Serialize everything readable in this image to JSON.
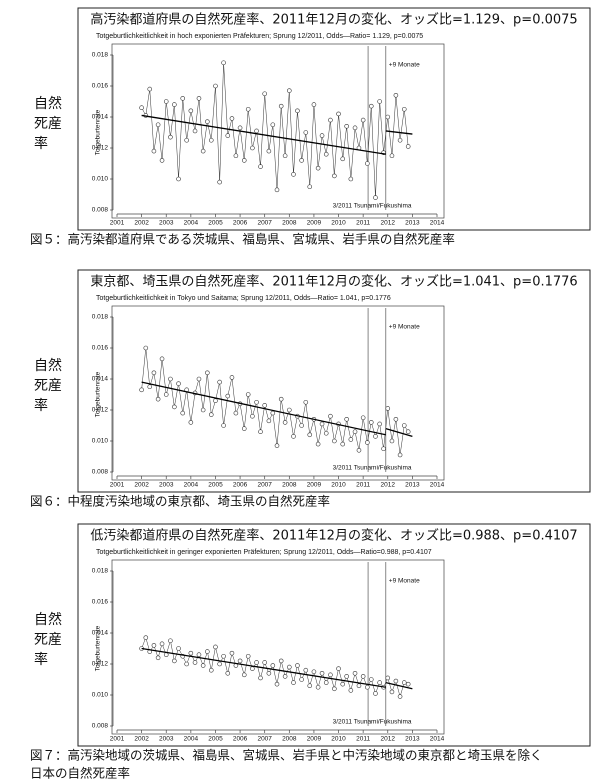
{
  "chart_data": [
    {
      "type": "line",
      "heading": "高汚染都道府県の自然死産率、2011年12月の変化、オッズ比=1.129、p=0.0075",
      "title": "Totgeburtlichkeitlichkeit in hoch exponierten Präfekturen; Sprung 12/2011, Odds—Ratio= 1.129, p=0.0075",
      "ylabel": "Totgeburtenrate",
      "side_label": [
        "自然",
        "死産",
        "率"
      ],
      "caption": [
        "図５：高汚染都道府県である茨城県、福島県、宮城県、岩手県の自然死産率"
      ],
      "xlim": [
        2001,
        2014
      ],
      "xticks": [
        2001,
        2002,
        2003,
        2004,
        2005,
        2006,
        2007,
        2008,
        2009,
        2010,
        2011,
        2012,
        2013,
        2014
      ],
      "ylim": [
        0.008,
        0.018
      ],
      "yticks": [
        0.008,
        {
          "value": 0.01,
          "label": "0.010"
        },
        0.012,
        0.014,
        0.016,
        0.018
      ],
      "series": [
        {
          "color": "#333333",
          "x": [
            2002,
            2002.17,
            2002.33,
            2002.5,
            2002.67,
            2002.83,
            2003,
            2003.17,
            2003.33,
            2003.5,
            2003.67,
            2003.83,
            2004,
            2004.17,
            2004.33,
            2004.5,
            2004.67,
            2004.83,
            2005,
            2005.17,
            2005.33,
            2005.5,
            2005.67,
            2005.83,
            2006,
            2006.17,
            2006.33,
            2006.5,
            2006.67,
            2006.83,
            2007,
            2007.17,
            2007.33,
            2007.5,
            2007.67,
            2007.83,
            2008,
            2008.17,
            2008.33,
            2008.5,
            2008.67,
            2008.83,
            2009,
            2009.17,
            2009.33,
            2009.5,
            2009.67,
            2009.83,
            2010,
            2010.17,
            2010.33,
            2010.5,
            2010.67,
            2010.83,
            2011,
            2011.17,
            2011.33,
            2011.5,
            2011.67,
            2011.83,
            2012,
            2012.17,
            2012.33,
            2012.5,
            2012.67,
            2012.83
          ],
          "values": [
            0.0146,
            0.0141,
            0.0158,
            0.0118,
            0.0135,
            0.0112,
            0.015,
            0.0127,
            0.0148,
            0.01,
            0.0152,
            0.0125,
            0.0144,
            0.0131,
            0.0152,
            0.0118,
            0.0137,
            0.0125,
            0.016,
            0.0098,
            0.0175,
            0.0128,
            0.0139,
            0.0115,
            0.0133,
            0.0112,
            0.0145,
            0.012,
            0.0131,
            0.0108,
            0.0155,
            0.0118,
            0.0135,
            0.0093,
            0.0147,
            0.0115,
            0.0157,
            0.0103,
            0.0144,
            0.0112,
            0.013,
            0.0095,
            0.0148,
            0.0107,
            0.0128,
            0.0116,
            0.0138,
            0.0102,
            0.0142,
            0.0113,
            0.0134,
            0.01,
            0.0133,
            0.012,
            0.0138,
            0.011,
            0.0147,
            0.0088,
            0.015,
            0.0117,
            0.014,
            0.0115,
            0.0154,
            0.0125,
            0.0145,
            0.0121
          ]
        }
      ],
      "trend": [
        {
          "x": [
            2002,
            2011.92
          ],
          "y": [
            0.0141,
            0.0116
          ]
        },
        {
          "x": [
            2011.92,
            2013
          ],
          "y": [
            0.0131,
            0.0129
          ]
        }
      ],
      "events": [
        {
          "x": 2011.2,
          "label": "3/2011 Tsunami/Fukushima"
        },
        {
          "x": 2011.92,
          "label": "+9 Monate"
        }
      ]
    },
    {
      "type": "line",
      "heading": "東京都、埼玉県の自然死産率、2011年12月の変化、オッズ比=1.041、p=0.1776",
      "title": "Totgeburtlichkeitlichkeit in Tokyo und Saitama; Sprung 12/2011, Odds—Ratio= 1.041, p=0.1776",
      "ylabel": "Totgeburtenrate",
      "side_label": [
        "自然",
        "死産",
        "率"
      ],
      "caption": [
        "図６：中程度汚染地域の東京都、埼玉県の自然死産率"
      ],
      "xlim": [
        2001,
        2014
      ],
      "xticks": [
        2001,
        2002,
        2003,
        2004,
        2005,
        2006,
        2007,
        2008,
        2009,
        2010,
        2011,
        2012,
        2013,
        2014
      ],
      "ylim": [
        0.008,
        0.018
      ],
      "yticks": [
        0.008,
        {
          "value": 0.01,
          "label": "0.010"
        },
        0.012,
        0.014,
        0.016,
        0.018
      ],
      "series": [
        {
          "color": "#333333",
          "x": [
            2002,
            2002.17,
            2002.33,
            2002.5,
            2002.67,
            2002.83,
            2003,
            2003.17,
            2003.33,
            2003.5,
            2003.67,
            2003.83,
            2004,
            2004.17,
            2004.33,
            2004.5,
            2004.67,
            2004.83,
            2005,
            2005.17,
            2005.33,
            2005.5,
            2005.67,
            2005.83,
            2006,
            2006.17,
            2006.33,
            2006.5,
            2006.67,
            2006.83,
            2007,
            2007.17,
            2007.33,
            2007.5,
            2007.67,
            2007.83,
            2008,
            2008.17,
            2008.33,
            2008.5,
            2008.67,
            2008.83,
            2009,
            2009.17,
            2009.33,
            2009.5,
            2009.67,
            2009.83,
            2010,
            2010.17,
            2010.33,
            2010.5,
            2010.67,
            2010.83,
            2011,
            2011.17,
            2011.33,
            2011.5,
            2011.67,
            2011.83,
            2012,
            2012.17,
            2012.33,
            2012.5,
            2012.67,
            2012.83
          ],
          "values": [
            0.0133,
            0.016,
            0.0135,
            0.0144,
            0.0127,
            0.0153,
            0.013,
            0.014,
            0.0122,
            0.0137,
            0.0118,
            0.0133,
            0.0112,
            0.0131,
            0.014,
            0.012,
            0.0144,
            0.0117,
            0.0126,
            0.0138,
            0.011,
            0.0129,
            0.0141,
            0.0118,
            0.0124,
            0.0108,
            0.013,
            0.0116,
            0.0125,
            0.0106,
            0.0123,
            0.0113,
            0.0118,
            0.0097,
            0.0127,
            0.0112,
            0.012,
            0.0103,
            0.0116,
            0.011,
            0.0125,
            0.0104,
            0.0114,
            0.0098,
            0.0111,
            0.0105,
            0.0116,
            0.01,
            0.0111,
            0.0098,
            0.0114,
            0.0101,
            0.0106,
            0.0094,
            0.0115,
            0.0099,
            0.0112,
            0.0103,
            0.0111,
            0.0095,
            0.0121,
            0.01,
            0.0114,
            0.0091,
            0.011,
            0.0106
          ]
        }
      ],
      "trend": [
        {
          "x": [
            2002,
            2011.92
          ],
          "y": [
            0.0138,
            0.0104
          ]
        },
        {
          "x": [
            2011.92,
            2013
          ],
          "y": [
            0.0108,
            0.0103
          ]
        }
      ],
      "events": [
        {
          "x": 2011.2,
          "label": "3/2011 Tsunami/Fukushima"
        },
        {
          "x": 2011.92,
          "label": "+9 Monate"
        }
      ]
    },
    {
      "type": "line",
      "heading": "低汚染都道府県の自然死産率、2011年12月の変化、オッズ比=0.988、p=0.4107",
      "title": "Totgeburtlichkeitlichkeit in geringer exponierten Präfekturen; Sprung 12/2011, Odds—Ratio=0.988, p=0.4107",
      "ylabel": "Totgeburtenrate",
      "side_label": [
        "自然",
        "死産",
        "率"
      ],
      "caption": [
        "図７：高汚染地域の茨城県、福島県、宮城県、岩手県と中汚染地域の東京都と埼玉県を除く",
        "日本の自然死産率"
      ],
      "xlim": [
        2001,
        2014
      ],
      "xticks": [
        2001,
        2002,
        2003,
        2004,
        2005,
        2006,
        2007,
        2008,
        2009,
        2010,
        2011,
        2012,
        2013,
        2014
      ],
      "ylim": [
        0.008,
        0.018
      ],
      "yticks": [
        0.008,
        {
          "value": 0.01,
          "label": "0.010"
        },
        0.012,
        0.014,
        0.016,
        0.018
      ],
      "series": [
        {
          "color": "#333333",
          "x": [
            2002,
            2002.17,
            2002.33,
            2002.5,
            2002.67,
            2002.83,
            2003,
            2003.17,
            2003.33,
            2003.5,
            2003.67,
            2003.83,
            2004,
            2004.17,
            2004.33,
            2004.5,
            2004.67,
            2004.83,
            2005,
            2005.17,
            2005.33,
            2005.5,
            2005.67,
            2005.83,
            2006,
            2006.17,
            2006.33,
            2006.5,
            2006.67,
            2006.83,
            2007,
            2007.17,
            2007.33,
            2007.5,
            2007.67,
            2007.83,
            2008,
            2008.17,
            2008.33,
            2008.5,
            2008.67,
            2008.83,
            2009,
            2009.17,
            2009.33,
            2009.5,
            2009.67,
            2009.83,
            2010,
            2010.17,
            2010.33,
            2010.5,
            2010.67,
            2010.83,
            2011,
            2011.17,
            2011.33,
            2011.5,
            2011.67,
            2011.83,
            2012,
            2012.17,
            2012.33,
            2012.5,
            2012.67,
            2012.83
          ],
          "values": [
            0.013,
            0.0137,
            0.0128,
            0.0132,
            0.0124,
            0.0133,
            0.0126,
            0.0135,
            0.0122,
            0.013,
            0.0125,
            0.012,
            0.0127,
            0.0121,
            0.0126,
            0.0119,
            0.0128,
            0.0116,
            0.0131,
            0.012,
            0.0125,
            0.0114,
            0.0127,
            0.0119,
            0.0122,
            0.0113,
            0.0125,
            0.0117,
            0.0121,
            0.0111,
            0.0121,
            0.0114,
            0.0119,
            0.0107,
            0.0122,
            0.0112,
            0.0118,
            0.0108,
            0.0119,
            0.011,
            0.0116,
            0.0106,
            0.0115,
            0.0105,
            0.0114,
            0.0108,
            0.0113,
            0.0104,
            0.0117,
            0.0107,
            0.0112,
            0.0103,
            0.0114,
            0.0106,
            0.0112,
            0.0105,
            0.011,
            0.0101,
            0.0108,
            0.0105,
            0.0111,
            0.0102,
            0.0109,
            0.0099,
            0.0108,
            0.0107
          ]
        }
      ],
      "trend": [
        {
          "x": [
            2002,
            2011.92
          ],
          "y": [
            0.013,
            0.0105
          ]
        },
        {
          "x": [
            2011.92,
            2013
          ],
          "y": [
            0.0108,
            0.0104
          ]
        }
      ],
      "events": [
        {
          "x": 2011.2,
          "label": "3/2011 Tsunami/Fukushima"
        },
        {
          "x": 2011.92,
          "label": "+9 Monate"
        }
      ]
    }
  ]
}
